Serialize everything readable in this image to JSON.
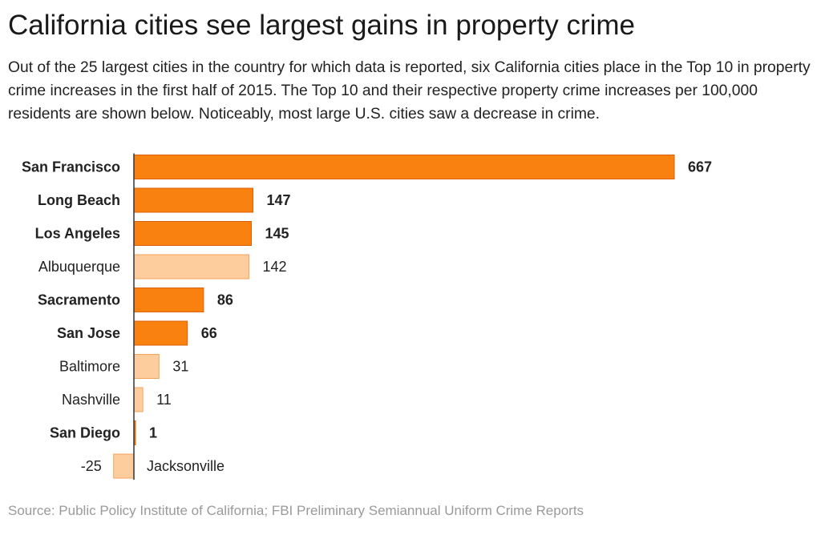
{
  "title": "California cities see largest gains in property crime",
  "subtitle": "Out of the 25 largest cities in the country for which data is reported, six California cities place in the Top 10 in property crime increases in the first half of 2015. The Top 10 and their respective property crime increases per 100,000 residents are shown below. Noticeably, most large U.S. cities saw a decrease in crime.",
  "source": "Source: Public Policy Institute of California; FBI Preliminary Semiannual Uniform Crime Reports",
  "colors": {
    "california_fill": "#f98110",
    "california_stroke": "#d9610a",
    "other_fill": "#fdcd9e",
    "other_stroke": "#f4a35c"
  },
  "chart_data": {
    "type": "bar",
    "orientation": "horizontal",
    "title": "California cities see largest gains in property crime",
    "xlabel": "",
    "ylabel": "",
    "categories": [
      "San Francisco",
      "Long Beach",
      "Los Angeles",
      "Albuquerque",
      "Sacramento",
      "San Jose",
      "Baltimore",
      "Nashville",
      "San Diego",
      "Jacksonville"
    ],
    "values": [
      667,
      147,
      145,
      142,
      86,
      66,
      31,
      11,
      1,
      -25
    ],
    "highlighted_california": [
      true,
      true,
      true,
      false,
      true,
      true,
      false,
      false,
      true,
      false
    ],
    "grid": false,
    "legend": "none"
  }
}
